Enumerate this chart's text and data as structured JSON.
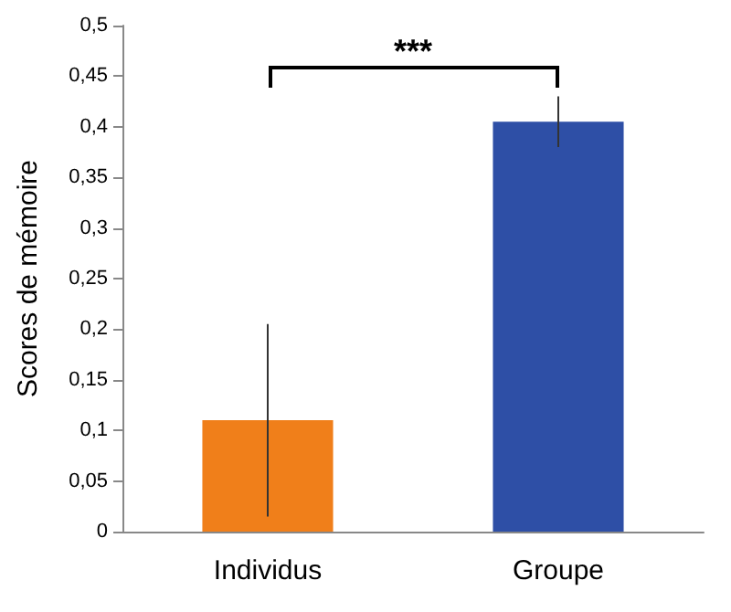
{
  "chart_data": {
    "type": "bar",
    "ylabel": "Scores de mémoire",
    "categories": [
      "Individus",
      "Groupe"
    ],
    "values": [
      0.11,
      0.405
    ],
    "colors": [
      "#f07f1a",
      "#2e4fa6"
    ],
    "errors": [
      [
        0.015,
        0.205
      ],
      [
        0.38,
        0.43
      ]
    ],
    "ylim": [
      0,
      0.5
    ],
    "yticks": [
      0,
      {
        "value": 0.05,
        "label": "0,05"
      },
      {
        "value": 0.1,
        "label": "0,1"
      },
      {
        "value": 0.15,
        "label": "0,15"
      },
      {
        "value": 0.2,
        "label": "0,2"
      },
      {
        "value": 0.25,
        "label": "0,25"
      },
      {
        "value": 0.3,
        "label": "0,3"
      },
      {
        "value": 0.35,
        "label": "0,35"
      },
      {
        "value": 0.4,
        "label": "0,4"
      },
      {
        "value": 0.45,
        "label": "0,45"
      },
      {
        "value": 0.5,
        "label": "0,5"
      }
    ],
    "annotations": [
      "***"
    ],
    "grid": false
  }
}
